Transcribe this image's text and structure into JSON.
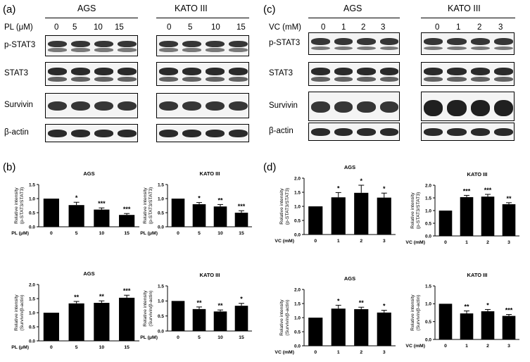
{
  "panels": {
    "a": {
      "label": "(a)",
      "cells": [
        "AGS",
        "KATO III"
      ],
      "treatment_label": "PL (μM)",
      "doses": [
        "0",
        "5",
        "10",
        "15"
      ],
      "blots": [
        "p-STAT3",
        "STAT3",
        "Survivin",
        "β-actin"
      ]
    },
    "b": {
      "label": "(b)"
    },
    "c": {
      "label": "(c)",
      "cells": [
        "AGS",
        "KATO III"
      ],
      "treatment_label": "VC (mM)",
      "doses": [
        "0",
        "1",
        "2",
        "3"
      ],
      "blots": [
        "p-STAT3",
        "STAT3",
        "Survivin",
        "β-actin"
      ]
    },
    "d": {
      "label": "(d)"
    }
  },
  "chart_data": [
    {
      "panel": "b",
      "type": "bar",
      "title": "AGS",
      "ylabel": "Relative intensity (p-STAT3/STAT3)",
      "xlabel": "PL (μM)",
      "categories": [
        "0",
        "5",
        "10",
        "15"
      ],
      "values": [
        1.0,
        0.77,
        0.61,
        0.42
      ],
      "errors": [
        0,
        0.1,
        0.06,
        0.05
      ],
      "significance": [
        "",
        "*",
        "***",
        "***"
      ],
      "ylim": [
        0,
        1.5
      ],
      "yticks": [
        "0.0",
        "0.5",
        "1.0",
        "1.5"
      ]
    },
    {
      "panel": "b",
      "type": "bar",
      "title": "KATO III",
      "ylabel": "Relative intensity (p-STAT3/STAT3)",
      "xlabel": "PL (μM)",
      "categories": [
        "0",
        "5",
        "10",
        "15"
      ],
      "values": [
        1.0,
        0.8,
        0.72,
        0.5
      ],
      "errors": [
        0,
        0.06,
        0.07,
        0.07
      ],
      "significance": [
        "",
        "*",
        "**",
        "***"
      ],
      "ylim": [
        0,
        1.5
      ],
      "yticks": [
        "0.0",
        "0.5",
        "1.0",
        "1.5"
      ]
    },
    {
      "panel": "b",
      "type": "bar",
      "title": "AGS",
      "ylabel": "Relative intensity (Survivin/β-actin)",
      "xlabel": "PL (μM)",
      "categories": [
        "0",
        "5",
        "10",
        "15"
      ],
      "values": [
        1.0,
        1.33,
        1.35,
        1.53
      ],
      "errors": [
        0,
        0.07,
        0.07,
        0.09
      ],
      "significance": [
        "",
        "**",
        "**",
        "***"
      ],
      "ylim": [
        0,
        2.0
      ],
      "yticks": [
        "0.0",
        "0.5",
        "1.0",
        "1.5",
        "2.0"
      ]
    },
    {
      "panel": "b",
      "type": "bar",
      "title": "KATO III",
      "ylabel": "Relative intensity (Survivin/β-actin)",
      "xlabel": "PL (μM)",
      "categories": [
        "0",
        "5",
        "10",
        "15"
      ],
      "values": [
        1.0,
        0.73,
        0.65,
        0.84
      ],
      "errors": [
        0,
        0.07,
        0.05,
        0.08
      ],
      "significance": [
        "",
        "**",
        "**",
        "*"
      ],
      "ylim": [
        0,
        1.5
      ],
      "yticks": [
        "0.0",
        "0.5",
        "1.0",
        "1.5"
      ]
    },
    {
      "panel": "d",
      "type": "bar",
      "title": "AGS",
      "ylabel": "Relative intensity (p-STAT3/STAT3)",
      "xlabel": "VC (mM)",
      "categories": [
        "0",
        "1",
        "2",
        "3"
      ],
      "values": [
        1.0,
        1.32,
        1.48,
        1.31
      ],
      "errors": [
        0,
        0.17,
        0.27,
        0.16
      ],
      "significance": [
        "",
        "*",
        "*",
        "*"
      ],
      "ylim": [
        0,
        2.0
      ],
      "yticks": [
        "0.0",
        "0.5",
        "1.0",
        "1.5",
        "2.0"
      ]
    },
    {
      "panel": "d",
      "type": "bar",
      "title": "KATO III",
      "ylabel": "Relative intensity (p-STAT3/STAT3)",
      "xlabel": "VC (mM)",
      "categories": [
        "0",
        "1",
        "2",
        "3"
      ],
      "values": [
        1.0,
        1.53,
        1.55,
        1.25
      ],
      "errors": [
        0,
        0.07,
        0.09,
        0.06
      ],
      "significance": [
        "",
        "***",
        "***",
        "**"
      ],
      "ylim": [
        0,
        2.0
      ],
      "yticks": [
        "0.0",
        "0.5",
        "1.0",
        "1.5",
        "2.0"
      ]
    },
    {
      "panel": "d",
      "type": "bar",
      "title": "AGS",
      "ylabel": "Relative intensity (Survivin/β-actin)",
      "xlabel": "VC (mM)",
      "categories": [
        "0",
        "1",
        "2",
        "3"
      ],
      "values": [
        1.0,
        1.32,
        1.3,
        1.18
      ],
      "errors": [
        0,
        0.12,
        0.07,
        0.08
      ],
      "significance": [
        "",
        "*",
        "**",
        "*"
      ],
      "ylim": [
        0,
        2.0
      ],
      "yticks": [
        "0.0",
        "0.5",
        "1.0",
        "1.5",
        "2.0"
      ]
    },
    {
      "panel": "d",
      "type": "bar",
      "title": "KATO III",
      "ylabel": "Relative intensity (Survivin/β-actin)",
      "xlabel": "VC (mM)",
      "categories": [
        "0",
        "1",
        "2",
        "3"
      ],
      "values": [
        1.0,
        0.73,
        0.79,
        0.66
      ],
      "errors": [
        0,
        0.07,
        0.05,
        0.04
      ],
      "significance": [
        "",
        "**",
        "*",
        "***"
      ],
      "ylim": [
        0,
        1.5
      ],
      "yticks": [
        "0.0",
        "0.5",
        "1.0",
        "1.5"
      ]
    }
  ]
}
